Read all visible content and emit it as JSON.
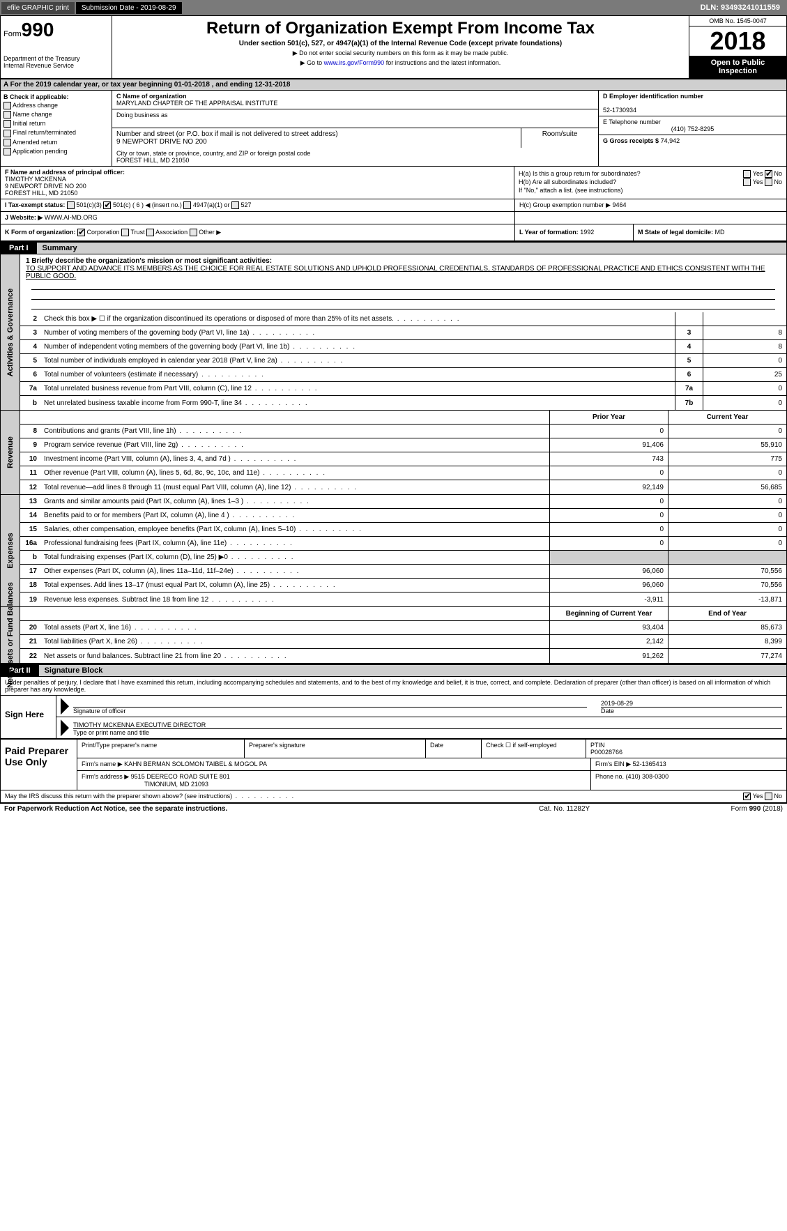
{
  "topbar": {
    "efile": "efile GRAPHIC print",
    "sub_label": "Submission Date - 2019-08-29",
    "dln": "DLN: 93493241011559"
  },
  "header": {
    "form_label": "Form",
    "form_num": "990",
    "dept1": "Department of the Treasury",
    "dept2": "Internal Revenue Service",
    "title": "Return of Organization Exempt From Income Tax",
    "sub": "Under section 501(c), 527, or 4947(a)(1) of the Internal Revenue Code (except private foundations)",
    "note1": "▶ Do not enter social security numbers on this form as it may be made public.",
    "note2": "▶ Go to www.irs.gov/Form990 for instructions and the latest information.",
    "omb": "OMB No. 1545-0047",
    "year": "2018",
    "open": "Open to Public Inspection"
  },
  "row_a": "A  For the 2019 calendar year, or tax year beginning 01-01-2018       , and ending 12-31-2018",
  "col_b": {
    "title": "B Check if applicable:",
    "items": [
      "Address change",
      "Name change",
      "Initial return",
      "Final return/terminated",
      "Amended return",
      "Application pending"
    ]
  },
  "col_c": {
    "name_lbl": "C Name of organization",
    "name": "MARYLAND CHAPTER OF THE APPRAISAL INSTITUTE",
    "dba_lbl": "Doing business as",
    "dba": "",
    "street_lbl": "Number and street (or P.O. box if mail is not delivered to street address)",
    "room_lbl": "Room/suite",
    "street": "9 NEWPORT DRIVE NO 200",
    "city_lbl": "City or town, state or province, country, and ZIP or foreign postal code",
    "city": "FOREST HILL, MD  21050"
  },
  "col_de": {
    "d_lbl": "D Employer identification number",
    "d_val": "52-1730934",
    "e_lbl": "E Telephone number",
    "e_val": "(410) 752-8295",
    "g_lbl": "G Gross receipts $",
    "g_val": "74,942"
  },
  "row_f": {
    "lbl": "F Name and address of principal officer:",
    "name": "TIMOTHY MCKENNA",
    "street": "9 NEWPORT DRIVE NO 200",
    "city": "FOREST HILL, MD  21050"
  },
  "row_h": {
    "ha": "H(a)   Is this a group return for subordinates?",
    "hb": "H(b)   Are all subordinates included?",
    "hb_note": "If \"No,\" attach a list. (see instructions)",
    "hc": "H(c)   Group exemption number ▶",
    "hc_val": "9464"
  },
  "row_i": {
    "lbl": "I    Tax-exempt status:",
    "opt1": "501(c)(3)",
    "opt2": "501(c) ( 6 ) ◀ (insert no.)",
    "opt3": "4947(a)(1) or",
    "opt4": "527"
  },
  "row_j": {
    "lbl": "J    Website: ▶",
    "val": "WWW.AI-MD.ORG"
  },
  "row_k": {
    "lbl": "K Form of organization:",
    "opts": [
      "Corporation",
      "Trust",
      "Association",
      "Other ▶"
    ],
    "l_lbl": "L Year of formation:",
    "l_val": "1992",
    "m_lbl": "M State of legal domicile:",
    "m_val": "MD"
  },
  "part1": {
    "hdr": "Part I",
    "title": "Summary",
    "line1_lbl": "1  Briefly describe the organization's mission or most significant activities:",
    "line1_txt": "TO SUPPORT AND ADVANCE ITS MEMBERS AS THE CHOICE FOR REAL ESTATE SOLUTIONS AND UPHOLD PROFESSIONAL CREDENTIALS, STANDARDS OF PROFESSIONAL PRACTICE AND ETHICS CONSISTENT WITH THE PUBLIC GOOD.",
    "side_gov": "Activities & Governance",
    "side_rev": "Revenue",
    "side_exp": "Expenses",
    "side_net": "Net Assets or Fund Balances",
    "gov_lines": [
      {
        "n": "2",
        "t": "Check this box ▶ ☐ if the organization discontinued its operations or disposed of more than 25% of its net assets.",
        "box": "",
        "val": ""
      },
      {
        "n": "3",
        "t": "Number of voting members of the governing body (Part VI, line 1a)",
        "box": "3",
        "val": "8"
      },
      {
        "n": "4",
        "t": "Number of independent voting members of the governing body (Part VI, line 1b)",
        "box": "4",
        "val": "8"
      },
      {
        "n": "5",
        "t": "Total number of individuals employed in calendar year 2018 (Part V, line 2a)",
        "box": "5",
        "val": "0"
      },
      {
        "n": "6",
        "t": "Total number of volunteers (estimate if necessary)",
        "box": "6",
        "val": "25"
      },
      {
        "n": "7a",
        "t": "Total unrelated business revenue from Part VIII, column (C), line 12",
        "box": "7a",
        "val": "0"
      },
      {
        "n": "b",
        "t": "Net unrelated business taxable income from Form 990-T, line 34",
        "box": "7b",
        "val": "0"
      }
    ],
    "col_prior": "Prior Year",
    "col_curr": "Current Year",
    "rev_lines": [
      {
        "n": "8",
        "t": "Contributions and grants (Part VIII, line 1h)",
        "p": "0",
        "c": "0"
      },
      {
        "n": "9",
        "t": "Program service revenue (Part VIII, line 2g)",
        "p": "91,406",
        "c": "55,910"
      },
      {
        "n": "10",
        "t": "Investment income (Part VIII, column (A), lines 3, 4, and 7d )",
        "p": "743",
        "c": "775"
      },
      {
        "n": "11",
        "t": "Other revenue (Part VIII, column (A), lines 5, 6d, 8c, 9c, 10c, and 11e)",
        "p": "0",
        "c": "0"
      },
      {
        "n": "12",
        "t": "Total revenue—add lines 8 through 11 (must equal Part VIII, column (A), line 12)",
        "p": "92,149",
        "c": "56,685"
      }
    ],
    "exp_lines": [
      {
        "n": "13",
        "t": "Grants and similar amounts paid (Part IX, column (A), lines 1–3 )",
        "p": "0",
        "c": "0"
      },
      {
        "n": "14",
        "t": "Benefits paid to or for members (Part IX, column (A), line 4 )",
        "p": "0",
        "c": "0"
      },
      {
        "n": "15",
        "t": "Salaries, other compensation, employee benefits (Part IX, column (A), lines 5–10)",
        "p": "0",
        "c": "0"
      },
      {
        "n": "16a",
        "t": "Professional fundraising fees (Part IX, column (A), line 11e)",
        "p": "0",
        "c": "0"
      },
      {
        "n": "b",
        "t": "Total fundraising expenses (Part IX, column (D), line 25) ▶0",
        "p": "",
        "c": "",
        "shade": true
      },
      {
        "n": "17",
        "t": "Other expenses (Part IX, column (A), lines 11a–11d, 11f–24e)",
        "p": "96,060",
        "c": "70,556"
      },
      {
        "n": "18",
        "t": "Total expenses. Add lines 13–17 (must equal Part IX, column (A), line 25)",
        "p": "96,060",
        "c": "70,556"
      },
      {
        "n": "19",
        "t": "Revenue less expenses. Subtract line 18 from line 12",
        "p": "-3,911",
        "c": "-13,871"
      }
    ],
    "col_begin": "Beginning of Current Year",
    "col_end": "End of Year",
    "net_lines": [
      {
        "n": "20",
        "t": "Total assets (Part X, line 16)",
        "p": "93,404",
        "c": "85,673"
      },
      {
        "n": "21",
        "t": "Total liabilities (Part X, line 26)",
        "p": "2,142",
        "c": "8,399"
      },
      {
        "n": "22",
        "t": "Net assets or fund balances. Subtract line 21 from line 20",
        "p": "91,262",
        "c": "77,274"
      }
    ]
  },
  "part2": {
    "hdr": "Part II",
    "title": "Signature Block",
    "penalty": "Under penalties of perjury, I declare that I have examined this return, including accompanying schedules and statements, and to the best of my knowledge and belief, it is true, correct, and complete. Declaration of preparer (other than officer) is based on all information of which preparer has any knowledge.",
    "sign_here": "Sign Here",
    "sig_officer": "Signature of officer",
    "sig_date_lbl": "Date",
    "sig_date": "2019-08-29",
    "name_title": "TIMOTHY MCKENNA  EXECUTIVE DIRECTOR",
    "name_title_lbl": "Type or print name and title",
    "paid_prep": "Paid Preparer Use Only",
    "pp_name_lbl": "Print/Type preparer's name",
    "pp_sig_lbl": "Preparer's signature",
    "pp_date_lbl": "Date",
    "pp_check_lbl": "Check ☐ if self-employed",
    "pp_ptin_lbl": "PTIN",
    "pp_ptin": "P00028766",
    "firm_name_lbl": "Firm's name    ▶",
    "firm_name": "KAHN BERMAN SOLOMON TAIBEL & MOGOL PA",
    "firm_ein_lbl": "Firm's EIN ▶",
    "firm_ein": "52-1365413",
    "firm_addr_lbl": "Firm's address ▶",
    "firm_addr1": "9515 DEERECO ROAD SUITE 801",
    "firm_addr2": "TIMONIUM, MD  21093",
    "firm_phone_lbl": "Phone no.",
    "firm_phone": "(410) 308-0300",
    "discuss": "May the IRS discuss this return with the preparer shown above? (see instructions)"
  },
  "footer": {
    "pra": "For Paperwork Reduction Act Notice, see the separate instructions.",
    "cat": "Cat. No. 11282Y",
    "form": "Form 990 (2018)"
  },
  "yes": "Yes",
  "no": "No"
}
